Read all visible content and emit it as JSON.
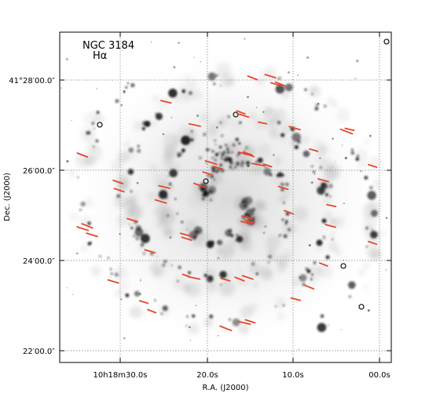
{
  "figure": {
    "title": "NGC 3184",
    "subtitle": "Hα",
    "xlabel": "R.A. (J2000)",
    "ylabel": "Dec. (J2000)",
    "x_tick_labels": [
      "10h18m30.0s",
      "20.0s",
      "10.0s",
      "00.0s"
    ],
    "y_tick_labels": [
      "41°28′00.0″",
      "26′00.0″",
      "24′00.0″",
      "22′00.0″"
    ],
    "colors": {
      "background": "#ffffff",
      "emission": "#1a1a1a",
      "marker": "#e8452c",
      "grid": "#7a7a7a"
    },
    "marker_count": 58
  }
}
